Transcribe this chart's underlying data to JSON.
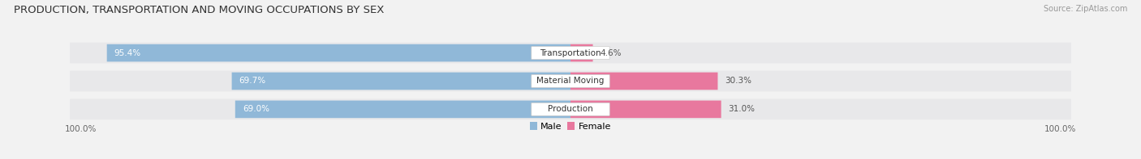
{
  "title": "PRODUCTION, TRANSPORTATION AND MOVING OCCUPATIONS BY SEX",
  "source": "Source: ZipAtlas.com",
  "categories": [
    "Transportation",
    "Material Moving",
    "Production"
  ],
  "male_pct": [
    95.4,
    69.7,
    69.0
  ],
  "female_pct": [
    4.6,
    30.3,
    31.0
  ],
  "male_color": "#90b8d8",
  "female_color": "#e8789e",
  "bg_color": "#f2f2f2",
  "row_bg_color": "#e8e8ea",
  "label_color_male": "#ffffff",
  "label_color_female": "#555555",
  "title_fontsize": 9.5,
  "source_fontsize": 7,
  "bar_label_fontsize": 7.5,
  "category_label_fontsize": 7.5,
  "axis_label_fontsize": 7.5,
  "legend_fontsize": 8,
  "x_axis_labels": [
    "100.0%",
    "100.0%"
  ]
}
